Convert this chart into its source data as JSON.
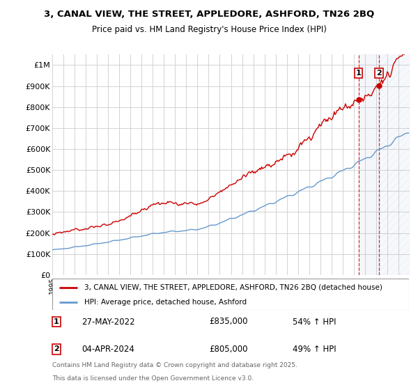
{
  "title": "3, CANAL VIEW, THE STREET, APPLEDORE, ASHFORD, TN26 2BQ",
  "subtitle": "Price paid vs. HM Land Registry's House Price Index (HPI)",
  "ylim": [
    0,
    1050000
  ],
  "xlim_start": 1995.0,
  "xlim_end": 2027.0,
  "background_color": "#ffffff",
  "grid_color": "#cccccc",
  "property_color": "#cc0000",
  "hpi_color": "#6699cc",
  "transaction1_x": 2022.42,
  "transaction1_y": 835000,
  "transaction2_x": 2024.25,
  "transaction2_y": 805000,
  "transaction1_date": "27-MAY-2022",
  "transaction1_price": "£835,000",
  "transaction1_hpi": "54% ↑ HPI",
  "transaction2_date": "04-APR-2024",
  "transaction2_price": "£805,000",
  "transaction2_hpi": "49% ↑ HPI",
  "legend_property": "3, CANAL VIEW, THE STREET, APPLEDORE, ASHFORD, TN26 2BQ (detached house)",
  "legend_hpi": "HPI: Average price, detached house, Ashford",
  "footnote1": "Contains HM Land Registry data © Crown copyright and database right 2025.",
  "footnote2": "This data is licensed under the Open Government Licence v3.0.",
  "yticks": [
    0,
    100000,
    200000,
    300000,
    400000,
    500000,
    600000,
    700000,
    800000,
    900000,
    1000000
  ],
  "ytick_labels": [
    "£0",
    "£100K",
    "£200K",
    "£300K",
    "£400K",
    "£500K",
    "£600K",
    "£700K",
    "£800K",
    "£900K",
    "£1M"
  ]
}
